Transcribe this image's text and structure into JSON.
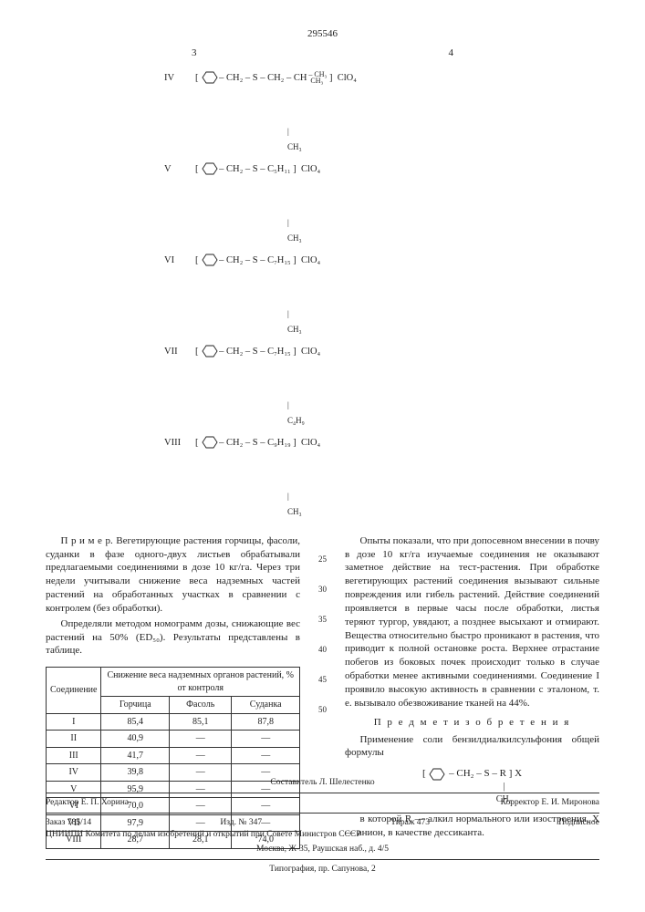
{
  "doc_number": "295546",
  "page_left": "3",
  "page_right": "4",
  "structures": [
    {
      "rn": "IV",
      "s1": "CH₂ – S – CH₂ – CH",
      "r1": "– CH₃",
      "r2": "CH₃",
      "below": "CH₃",
      "anion": "ClO₄"
    },
    {
      "rn": "V",
      "s1": "CH₂ – S – C₅H₁₁",
      "below": "CH₃",
      "anion": "ClO₄"
    },
    {
      "rn": "VI",
      "s1": "CH₂ – S – C₇H₁₅",
      "below": "CH₃",
      "anion": "ClO₄"
    },
    {
      "rn": "VII",
      "s1": "CH₂ – S – C₇H₁₅",
      "below": "C₄H₉",
      "anion": "ClO₄"
    },
    {
      "rn": "VIII",
      "s1": "CH₂ – S – C₉H₁₉",
      "below": "CH₃",
      "anion": "ClO₄"
    }
  ],
  "left_p1": "П р и м е р. Вегетирующие растения горчицы, фасоли, суданки в фазе одного-двух листьев обрабатывали предлагаемыми соединениями в дозе 10 кг/га. Через три недели учитывали снижение веса надземных частей растений на обработанных участках в сравнении с контролем (без обработки).",
  "left_p2": "Определяли методом номограмм дозы, снижающие вес растений на 50% (ED₅₀). Результаты представлены в таблице.",
  "table": {
    "head_main": "Соединение",
    "head_group": "Снижение веса надземных органов растений, % от контроля",
    "cols": [
      "Горчица",
      "Фасоль",
      "Суданка"
    ],
    "rows": [
      [
        "I",
        "85,4",
        "85,1",
        "87,8"
      ],
      [
        "II",
        "40,9",
        "—",
        "—"
      ],
      [
        "III",
        "41,7",
        "—",
        "—"
      ],
      [
        "IV",
        "39,8",
        "—",
        "—"
      ],
      [
        "V",
        "95,9",
        "—",
        "—"
      ],
      [
        "VI",
        "70,0",
        "—",
        "—"
      ],
      [
        "VII",
        "97,9",
        "—",
        "—"
      ],
      [
        "VIII",
        "28,7",
        "28,1",
        "74,0"
      ]
    ]
  },
  "right_p1": "Опыты показали, что при допосевном внесении в почву в дозе 10 кг/га изучаемые соединения не оказывают заметное действие на тест-растения. При обработке вегетирующих растений соединения вызывают сильные повреждения или гибель растений. Действие соединений проявляется в первые часы после обработки, листья теряют тургор, увядают, а позднее высыхают и отмирают. Вещества относительно быстро проникают в растения, что приводит к полной остановке роста. Верхнее отрастание побегов из боковых почек происходит только в случае обработки менее активными соединениями. Соединение I проявило высокую активность в сравнении с эталоном, т. е. вызывало обезвоживание тканей на 44%.",
  "subject_head": "П р е д м е т   и з о б р е т е н и я",
  "right_p2": "Применение соли бензилдиалкилсульфония общей формулы",
  "right_p3": "в которой R — алкил нормального или изостроения, X — анион, в качестве дессиканта.",
  "formula_line": "CH₂ – S – R",
  "formula_below": "CH₃",
  "formula_anion": "X",
  "line_numbers": [
    "25",
    "30",
    "35",
    "40",
    "45",
    "50"
  ],
  "compiler": "Составитель Л. Шелестенко",
  "editor_l": "Редактор Е. П. Хорина",
  "editor_r": "Корректор Е. И. Миронова",
  "footer1_a": "Заказ 785/14",
  "footer1_b": "Изд. № 347",
  "footer1_c": "Тираж 473",
  "footer1_d": "Подписное",
  "footer2": "ЦНИИПИ Комитета по делам изобретений и открытий при Совете Министров СССР",
  "footer3": "Москва, Ж-35, Раушская наб., д. 4/5",
  "footer4": "Типография, пр. Сапунова, 2"
}
